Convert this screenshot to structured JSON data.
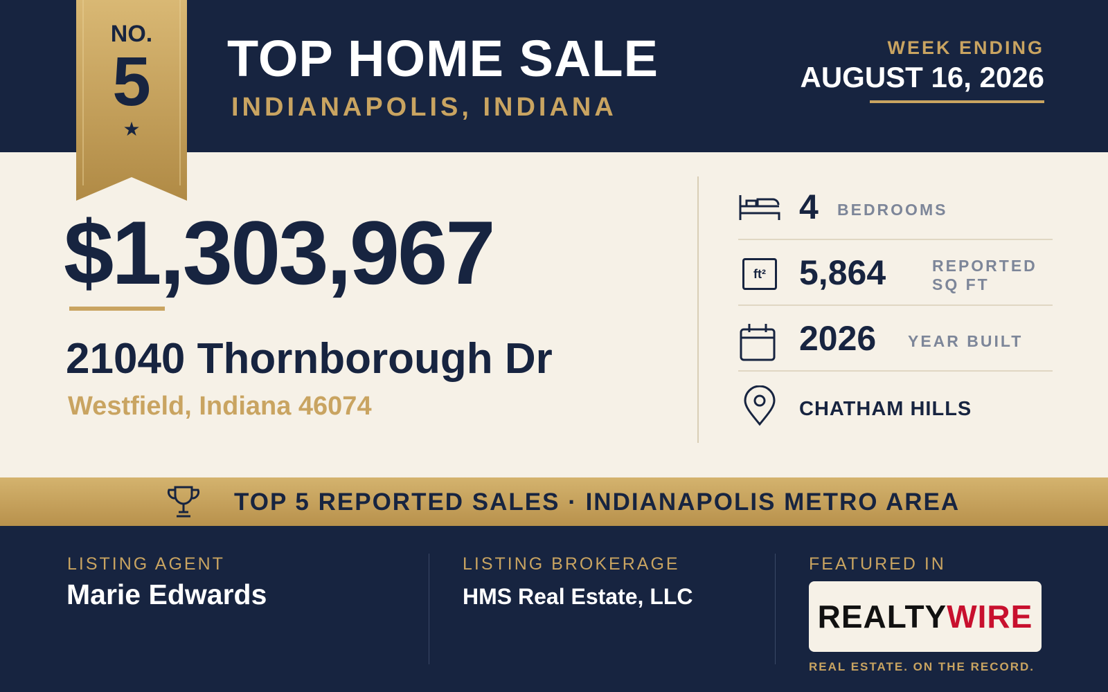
{
  "badge": {
    "label": "NO.",
    "number": "5"
  },
  "header": {
    "title": "TOP HOME SALE",
    "subtitle": "INDIANAPOLIS, INDIANA",
    "week_label": "WEEK ENDING",
    "week_date": "AUGUST 16, 2026"
  },
  "sale": {
    "price": "$1,303,967",
    "street": "21040 Thornborough Dr",
    "city": "Westfield, Indiana 46074"
  },
  "stats": [
    {
      "value": "4",
      "label": "BEDROOMS"
    },
    {
      "icon": "ft²",
      "value": "5,864",
      "label": "REPORTED SQ FT"
    },
    {
      "value": "2026",
      "label": "YEAR BUILT"
    },
    {
      "label": "CHATHAM HILLS"
    }
  ],
  "banner": "TOP 5 REPORTED SALES · INDIANAPOLIS METRO AREA",
  "footer": {
    "agent": {
      "label": "LISTING AGENT",
      "name": "Marie Edwards"
    },
    "brokerage": {
      "label": "LISTING BROKERAGE",
      "name": "HMS Real Estate, LLC"
    },
    "featured": {
      "label": "FEATURED IN",
      "logo_realty": "REALTY",
      "logo_wire": "WIRE",
      "tagline": "REAL ESTATE. ON THE RECORD."
    }
  }
}
